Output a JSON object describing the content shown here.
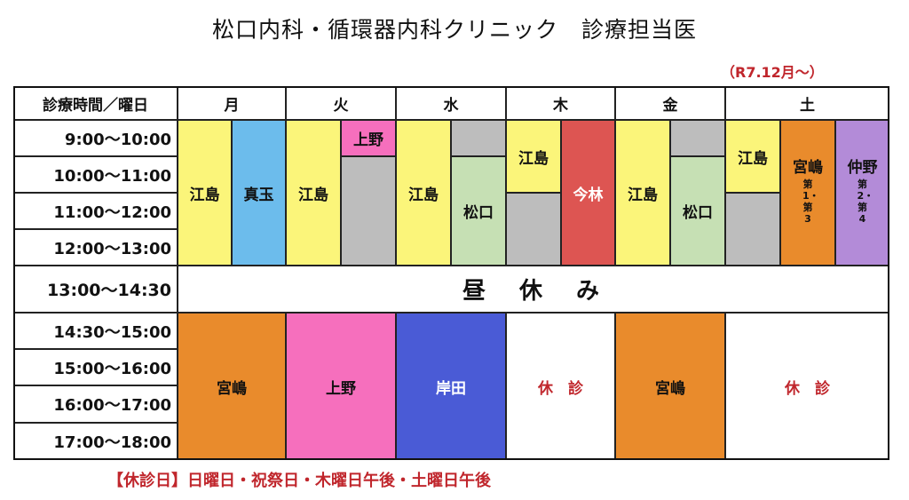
{
  "title": "松口内科・循環器内科クリニック　診療担当医",
  "effective_date": "（R7.12月～）",
  "header": {
    "time_label": "診療時間／曜日",
    "days": [
      "月",
      "火",
      "水",
      "木",
      "金",
      "土"
    ]
  },
  "time_slots": {
    "morning": [
      "9:00～10:00",
      "10:00～11:00",
      "11:00～12:00",
      "12:00～13:00"
    ],
    "lunch": "13:00～14:30",
    "afternoon": [
      "14:30～15:00",
      "15:00～16:00",
      "16:00～17:00",
      "17:00～18:00"
    ]
  },
  "morning": {
    "mon": [
      "江島",
      "真玉"
    ],
    "tue": [
      "江島",
      "上野"
    ],
    "wed": [
      "江島",
      "松口"
    ],
    "thu": [
      "江島",
      "今林"
    ],
    "fri": [
      "江島",
      "松口"
    ],
    "sat": [
      {
        "name": "江島"
      },
      {
        "name": "宮嶋",
        "note": "第1・第3"
      },
      {
        "name": "仲野",
        "note": "第2・第4"
      }
    ]
  },
  "lunch_label": "昼　休　み",
  "afternoon": {
    "mon": "宮嶋",
    "tue": "上野",
    "wed": "岸田",
    "thu": "休　診",
    "fri": "宮嶋",
    "sat": "休　診"
  },
  "closed_days": "【休診日】日曜日・祝祭日・木曜日午後・土曜日午後",
  "colors": {
    "yellow": "#fbf57a",
    "blue": "#6cbcec",
    "pink": "#f66fbd",
    "gray": "#bdbdbd",
    "green": "#c6e0b4",
    "red": "#dd5552",
    "orange": "#e98b2c",
    "purple": "#b38bd8",
    "navy": "#4a5bd6",
    "closed_text": "#c0262c"
  }
}
